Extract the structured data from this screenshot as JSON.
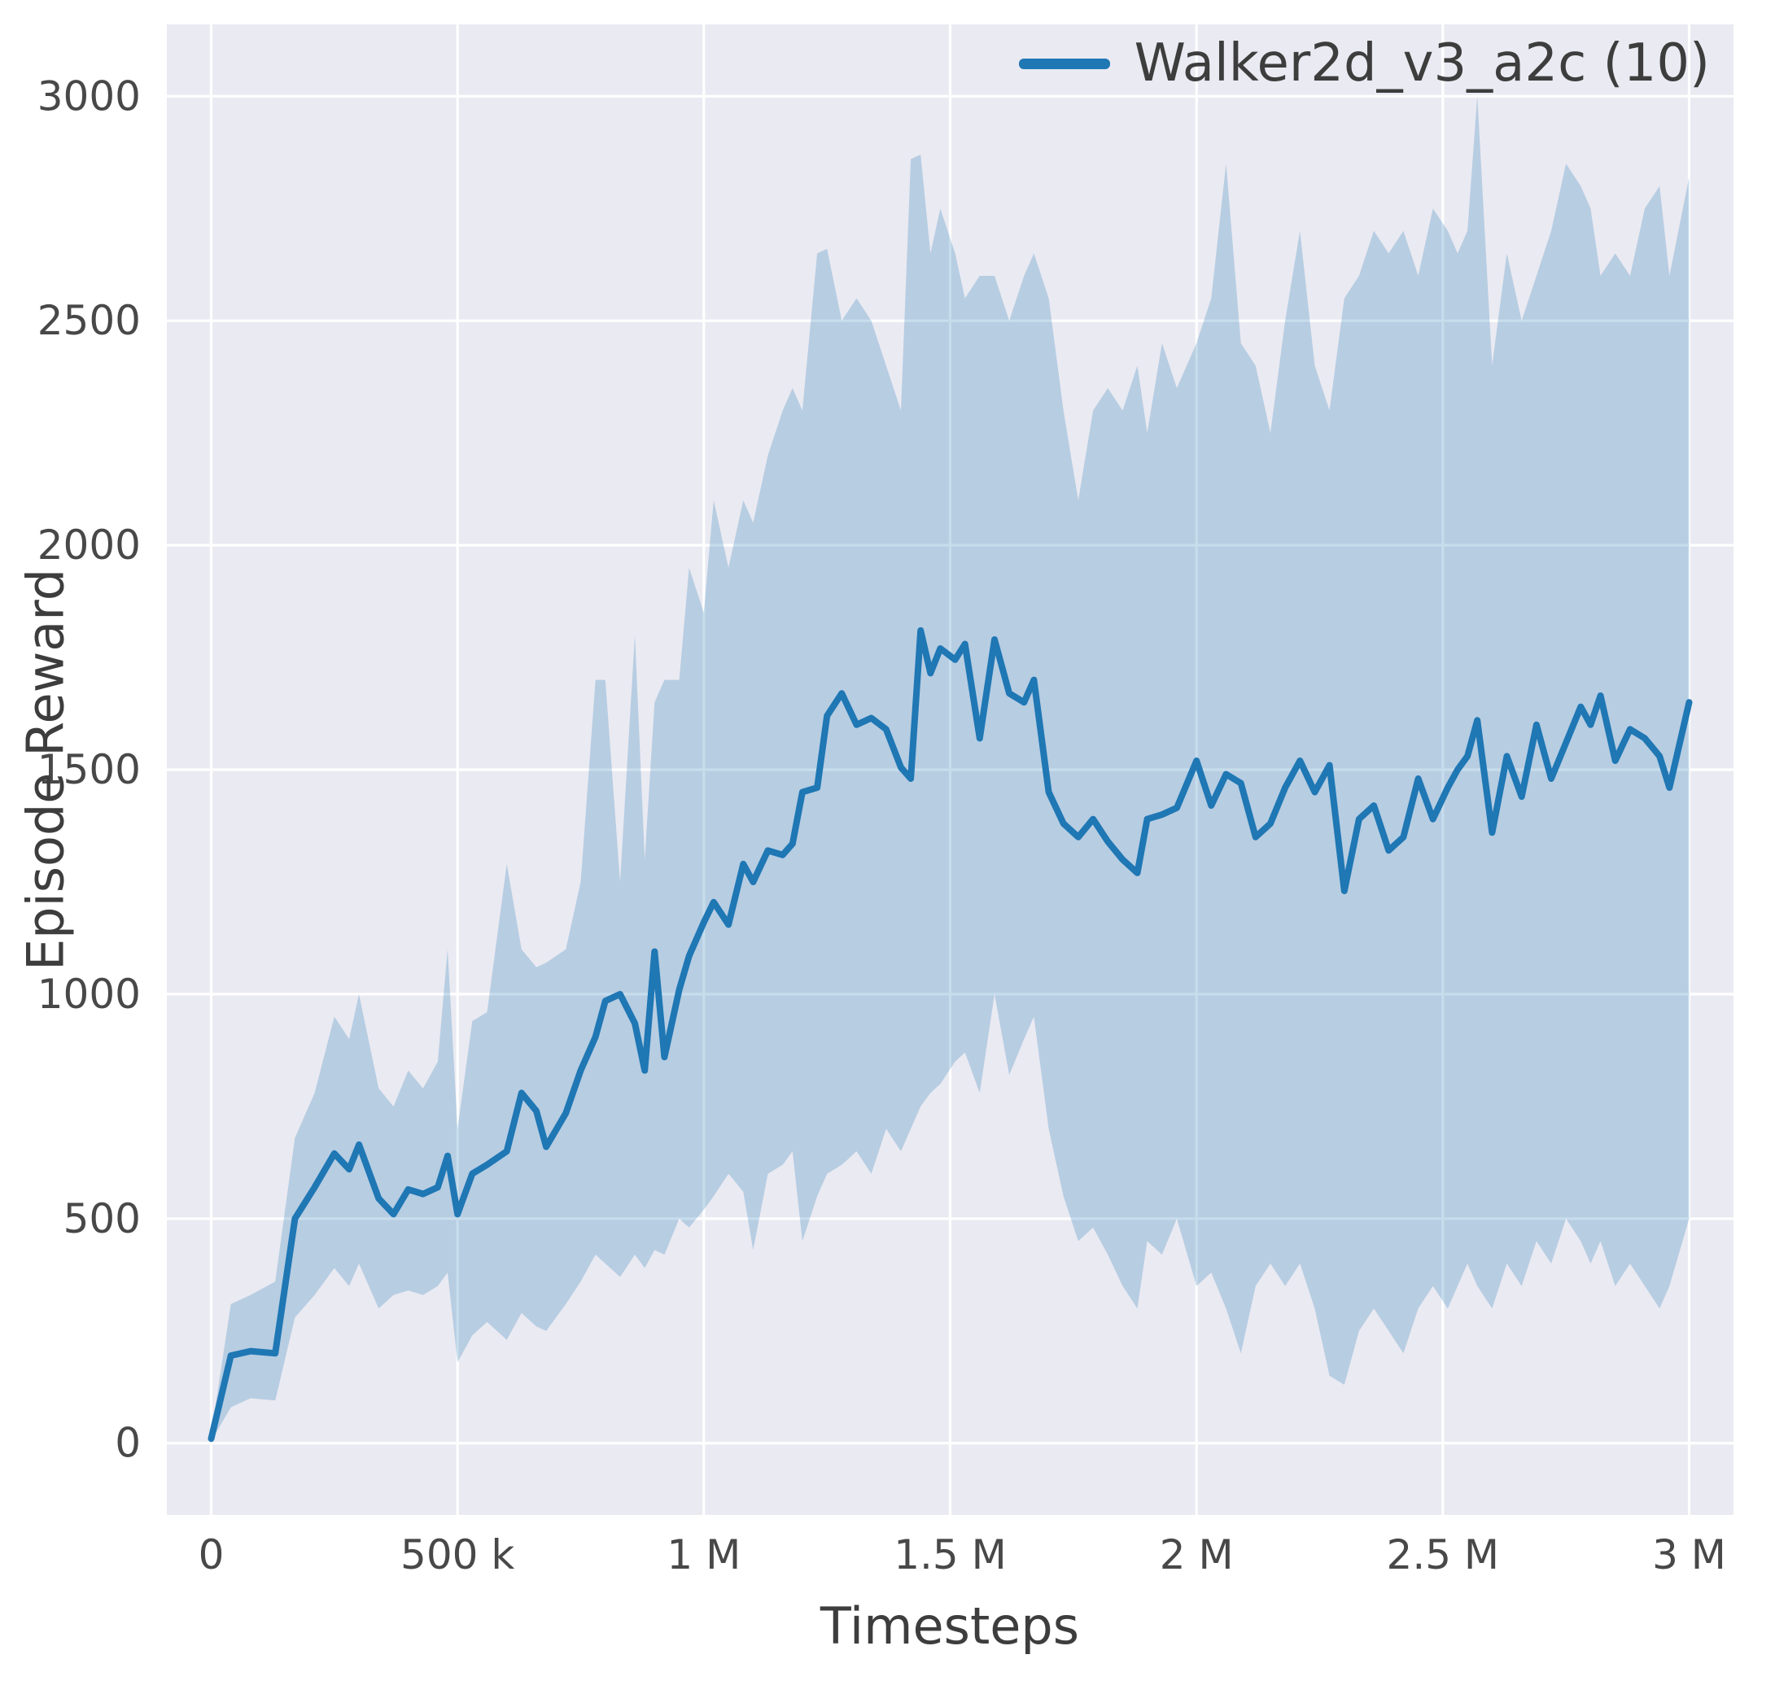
{
  "chart_data": {
    "type": "line",
    "title": "",
    "xlabel": "Timesteps",
    "ylabel": "Episode Reward",
    "legend_position": "upper right",
    "grid": true,
    "x_unit": "millions of timesteps",
    "x_scale": 1000000,
    "xlim": [
      -0.09,
      3.09
    ],
    "ylim": [
      -160,
      3160
    ],
    "x_ticks": {
      "values": [
        0,
        0.5,
        1,
        1.5,
        2,
        2.5,
        3
      ],
      "labels": [
        "0",
        "500 k",
        "1 M",
        "1.5 M",
        "2 M",
        "2.5 M",
        "3 M"
      ]
    },
    "y_ticks": {
      "values": [
        0,
        500,
        1000,
        1500,
        2000,
        2500,
        3000
      ],
      "labels": [
        "0",
        "500",
        "1000",
        "1500",
        "2000",
        "2500",
        "3000"
      ]
    },
    "colors": {
      "plot_bg": "#eaeaf2",
      "grid": "#ffffff",
      "tick_text": "#484848"
    },
    "series": [
      {
        "name": "Walker2d_v3_a2c (10)",
        "color": "#1f77b4",
        "band_color": "rgba(31,119,180,0.25)",
        "x": [
          0,
          0.04,
          0.08,
          0.13,
          0.17,
          0.21,
          0.25,
          0.28,
          0.3,
          0.34,
          0.37,
          0.4,
          0.43,
          0.46,
          0.48,
          0.5,
          0.53,
          0.56,
          0.6,
          0.63,
          0.66,
          0.68,
          0.72,
          0.75,
          0.78,
          0.8,
          0.83,
          0.86,
          0.88,
          0.9,
          0.92,
          0.95,
          0.97,
          1.0,
          1.02,
          1.05,
          1.08,
          1.1,
          1.13,
          1.16,
          1.18,
          1.2,
          1.23,
          1.25,
          1.28,
          1.31,
          1.34,
          1.37,
          1.4,
          1.42,
          1.44,
          1.46,
          1.48,
          1.51,
          1.53,
          1.56,
          1.59,
          1.62,
          1.65,
          1.67,
          1.7,
          1.73,
          1.76,
          1.79,
          1.82,
          1.85,
          1.88,
          1.9,
          1.93,
          1.96,
          2.0,
          2.03,
          2.06,
          2.09,
          2.12,
          2.15,
          2.18,
          2.21,
          2.24,
          2.27,
          2.3,
          2.33,
          2.36,
          2.39,
          2.42,
          2.45,
          2.48,
          2.51,
          2.53,
          2.55,
          2.57,
          2.6,
          2.63,
          2.66,
          2.69,
          2.72,
          2.75,
          2.78,
          2.8,
          2.82,
          2.85,
          2.88,
          2.91,
          2.94,
          2.96,
          3.0
        ],
        "mean": [
          10,
          195,
          205,
          200,
          500,
          570,
          645,
          610,
          665,
          545,
          510,
          565,
          555,
          570,
          640,
          510,
          600,
          620,
          650,
          780,
          740,
          660,
          735,
          830,
          905,
          985,
          1000,
          935,
          830,
          1095,
          860,
          1010,
          1085,
          1160,
          1205,
          1155,
          1290,
          1250,
          1320,
          1310,
          1335,
          1450,
          1460,
          1620,
          1670,
          1600,
          1615,
          1590,
          1505,
          1480,
          1810,
          1715,
          1770,
          1745,
          1780,
          1570,
          1790,
          1670,
          1650,
          1700,
          1450,
          1380,
          1350,
          1390,
          1340,
          1300,
          1270,
          1390,
          1400,
          1415,
          1520,
          1420,
          1490,
          1470,
          1350,
          1380,
          1460,
          1520,
          1450,
          1510,
          1230,
          1390,
          1420,
          1320,
          1350,
          1480,
          1390,
          1460,
          1500,
          1530,
          1610,
          1360,
          1530,
          1440,
          1600,
          1480,
          1560,
          1640,
          1600,
          1665,
          1520,
          1590,
          1570,
          1530,
          1460,
          1650
        ],
        "lo": [
          5,
          80,
          100,
          95,
          280,
          330,
          390,
          350,
          400,
          300,
          330,
          340,
          330,
          350,
          380,
          180,
          240,
          270,
          230,
          290,
          260,
          250,
          310,
          360,
          420,
          400,
          370,
          420,
          390,
          430,
          420,
          500,
          480,
          520,
          550,
          600,
          560,
          430,
          600,
          620,
          650,
          450,
          550,
          600,
          620,
          650,
          600,
          700,
          650,
          700,
          750,
          780,
          800,
          850,
          870,
          780,
          1000,
          820,
          900,
          950,
          700,
          550,
          450,
          480,
          420,
          350,
          300,
          450,
          420,
          500,
          350,
          380,
          300,
          200,
          350,
          400,
          350,
          400,
          300,
          150,
          130,
          250,
          300,
          250,
          200,
          300,
          350,
          300,
          350,
          400,
          350,
          300,
          400,
          350,
          450,
          400,
          500,
          450,
          400,
          450,
          350,
          400,
          350,
          300,
          350,
          500
        ],
        "hi": [
          20,
          310,
          330,
          360,
          680,
          780,
          950,
          900,
          1000,
          790,
          750,
          830,
          790,
          850,
          1100,
          700,
          940,
          960,
          1290,
          1100,
          1060,
          1070,
          1100,
          1250,
          1700,
          1700,
          1250,
          1800,
          1300,
          1650,
          1700,
          1700,
          1950,
          1850,
          2100,
          1950,
          2100,
          2050,
          2200,
          2300,
          2350,
          2300,
          2650,
          2660,
          2500,
          2550,
          2500,
          2400,
          2300,
          2860,
          2870,
          2650,
          2750,
          2650,
          2550,
          2600,
          2600,
          2500,
          2600,
          2650,
          2550,
          2300,
          2100,
          2300,
          2350,
          2300,
          2400,
          2250,
          2450,
          2350,
          2450,
          2550,
          2850,
          2450,
          2400,
          2250,
          2500,
          2700,
          2400,
          2300,
          2550,
          2600,
          2700,
          2650,
          2700,
          2600,
          2750,
          2700,
          2650,
          2700,
          3000,
          2400,
          2650,
          2500,
          2600,
          2700,
          2850,
          2800,
          2750,
          2600,
          2650,
          2600,
          2750,
          2800,
          2600,
          2820
        ]
      }
    ]
  },
  "legend": {
    "entries": [
      {
        "label": "Walker2d_v3_a2c (10)"
      }
    ]
  }
}
